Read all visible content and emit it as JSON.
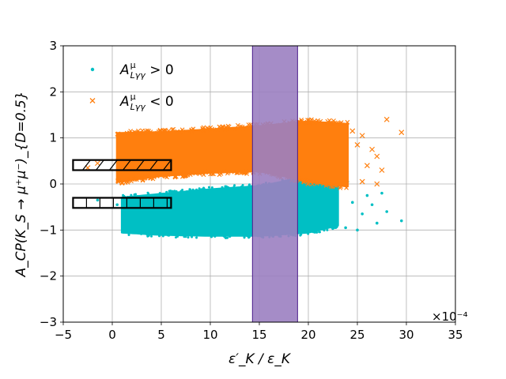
{
  "chart_data": {
    "type": "scatter",
    "title": "",
    "xlabel": "ε′_K / ε_K",
    "ylabel": "A_CP(K_S → μ⁺μ⁻)_{D=0.5}",
    "x_scale_note": "×10⁻⁴",
    "xlim": [
      -5,
      35
    ],
    "ylim": [
      -3,
      3
    ],
    "x_ticks": [
      -5,
      0,
      5,
      10,
      15,
      20,
      25,
      30,
      35
    ],
    "x_tick_labels": [
      "−5",
      "0",
      "5",
      "10",
      "15",
      "20",
      "25",
      "30",
      "35"
    ],
    "y_ticks": [
      -3,
      -2,
      -1,
      0,
      1,
      2,
      3
    ],
    "y_tick_labels": [
      "−3",
      "−2",
      "−1",
      "0",
      "1",
      "2",
      "3"
    ],
    "grid": true,
    "legend_placement": "top-left",
    "series": [
      {
        "name": "A^μ_{Lγγ} > 0",
        "legend_main": "A",
        "legend_sup": "μ",
        "legend_sub": "Lγγ",
        "legend_rel": " > 0",
        "marker": "dot",
        "color": "#00BFC4",
        "band": {
          "x_range": [
            1,
            23
          ],
          "lower": [
            [
              1,
              -1.05
            ],
            [
              5,
              -1.1
            ],
            [
              10,
              -1.12
            ],
            [
              15,
              -1.12
            ],
            [
              20,
              -1.05
            ],
            [
              23,
              -0.9
            ]
          ],
          "upper": [
            [
              1,
              -0.3
            ],
            [
              5,
              -0.22
            ],
            [
              10,
              -0.12
            ],
            [
              15,
              -0.05
            ],
            [
              17,
              0.03
            ],
            [
              20,
              0.18
            ],
            [
              23,
              0.25
            ]
          ]
        },
        "outliers": [
          [
            -1.5,
            -0.35
          ],
          [
            0.5,
            -0.45
          ],
          [
            24.5,
            -0.4
          ],
          [
            25,
            -1.0
          ],
          [
            25.5,
            -0.65
          ],
          [
            26,
            -0.25
          ],
          [
            26.5,
            -0.45
          ],
          [
            27,
            -0.85
          ],
          [
            27.5,
            -0.2
          ],
          [
            28,
            -0.6
          ],
          [
            29.5,
            -0.8
          ],
          [
            24,
            0.05
          ],
          [
            23.8,
            -0.95
          ]
        ]
      },
      {
        "name": "A^μ_{Lγγ} < 0",
        "legend_main": "A",
        "legend_sup": "μ",
        "legend_sub": "Lγγ",
        "legend_rel": " < 0",
        "marker": "x",
        "color": "#FF7F0E",
        "band": {
          "x_range": [
            0.5,
            24
          ],
          "lower": [
            [
              0.5,
              0.05
            ],
            [
              5,
              0.18
            ],
            [
              10,
              0.25
            ],
            [
              15,
              0.28
            ],
            [
              17,
              0.2
            ],
            [
              20,
              0.05
            ],
            [
              24,
              -0.05
            ]
          ],
          "upper": [
            [
              0.5,
              1.1
            ],
            [
              5,
              1.12
            ],
            [
              10,
              1.18
            ],
            [
              15,
              1.25
            ],
            [
              20,
              1.35
            ],
            [
              24,
              1.3
            ]
          ]
        },
        "outliers": [
          [
            -1.5,
            0.45
          ],
          [
            -2.5,
            0.35
          ],
          [
            22,
            1.35
          ],
          [
            24.5,
            1.15
          ],
          [
            25,
            0.85
          ],
          [
            25.5,
            1.05
          ],
          [
            26,
            0.4
          ],
          [
            26.5,
            0.75
          ],
          [
            27,
            0.6
          ],
          [
            27.5,
            0.3
          ],
          [
            28,
            1.4
          ],
          [
            29.5,
            1.12
          ],
          [
            27,
            0.0
          ],
          [
            25.5,
            0.05
          ]
        ]
      }
    ],
    "highlight_band": {
      "x_range": [
        14.3,
        18.9
      ],
      "color": "#9B7FC1",
      "edge_color": "#4B1E8C"
    },
    "hatched_boxes": [
      {
        "x_range": [
          -4,
          6
        ],
        "y_range": [
          0.3,
          0.52
        ],
        "hatch": "diagonal"
      },
      {
        "x_range": [
          -4,
          6
        ],
        "y_range": [
          -0.52,
          -0.3
        ],
        "hatch": "vertical"
      }
    ]
  }
}
